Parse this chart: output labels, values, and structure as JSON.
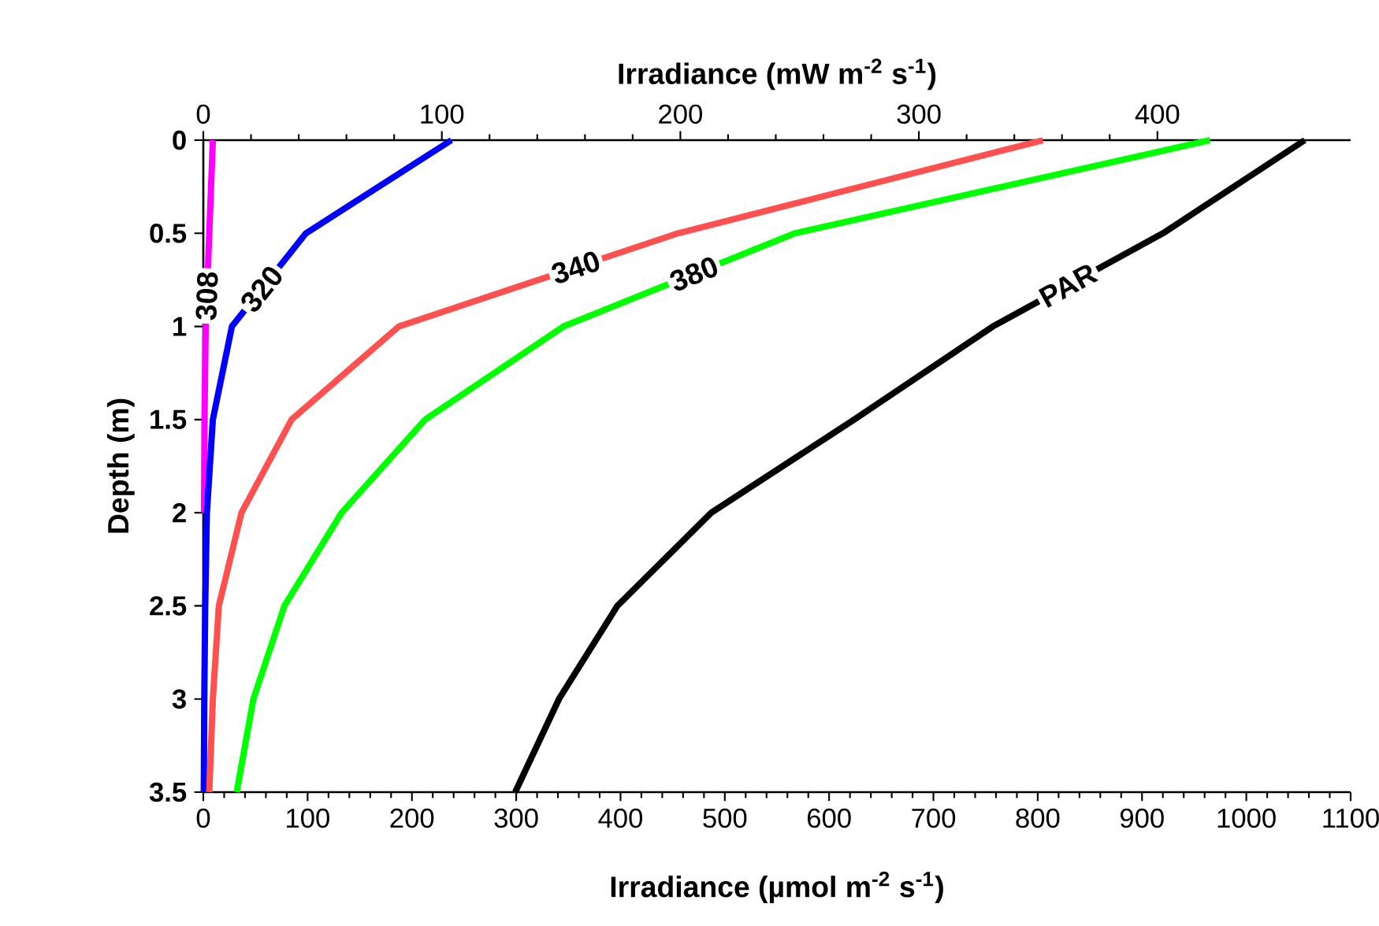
{
  "chart_data": {
    "type": "line",
    "xlabel": "Irradiance (µmol m$^{-2}$ s$^{-1}$)",
    "x2label": "Irradiance (mW m$^{-2}$ s$^{-1}$)",
    "ylabel": "Depth (m)",
    "xlim": [
      0,
      1100
    ],
    "xticks": [
      0,
      100,
      200,
      300,
      400,
      500,
      600,
      700,
      800,
      900,
      1000,
      1100
    ],
    "x2lim": [
      0,
      481
    ],
    "x2ticks": [
      0,
      100,
      200,
      300,
      400
    ],
    "ylim": [
      3.5,
      0
    ],
    "yticks": [
      0,
      0.5,
      1,
      1.5,
      2,
      2.5,
      3,
      3.5
    ],
    "series": [
      {
        "name": "308",
        "color": "#ff00ff",
        "axis": "x2",
        "x": [
          4,
          2.5,
          1,
          0.5,
          0.3,
          null,
          null,
          null
        ],
        "values": [
          0,
          0.5,
          1,
          1.5,
          2,
          null,
          null,
          null
        ]
      },
      {
        "name": "320",
        "color": "#0000ff",
        "axis": "x2",
        "x": [
          104,
          43,
          12,
          4,
          1.5,
          0.8,
          0.4,
          0.2
        ],
        "values": [
          0,
          0.5,
          1,
          1.5,
          2,
          2.5,
          3,
          3.5
        ]
      },
      {
        "name": "340",
        "color": "#ff5050",
        "axis": "x2",
        "x": [
          352,
          199,
          82,
          37,
          16,
          6.5,
          4,
          2.5
        ],
        "values": [
          0,
          0.5,
          1,
          1.5,
          2,
          2.5,
          3,
          3.5
        ]
      },
      {
        "name": "380",
        "color": "#00ff00",
        "axis": "x2",
        "x": [
          422,
          248,
          151,
          93,
          58,
          34,
          21,
          14
        ],
        "values": [
          0,
          0.5,
          1,
          1.5,
          2,
          2.5,
          3,
          3.5
        ]
      },
      {
        "name": "PAR",
        "color": "#000000",
        "x": [
          1056,
          920,
          757,
          624,
          487,
          397,
          341,
          299
        ],
        "values": [
          0,
          0.5,
          1,
          1.5,
          2,
          2.5,
          3,
          3.5
        ]
      }
    ]
  }
}
